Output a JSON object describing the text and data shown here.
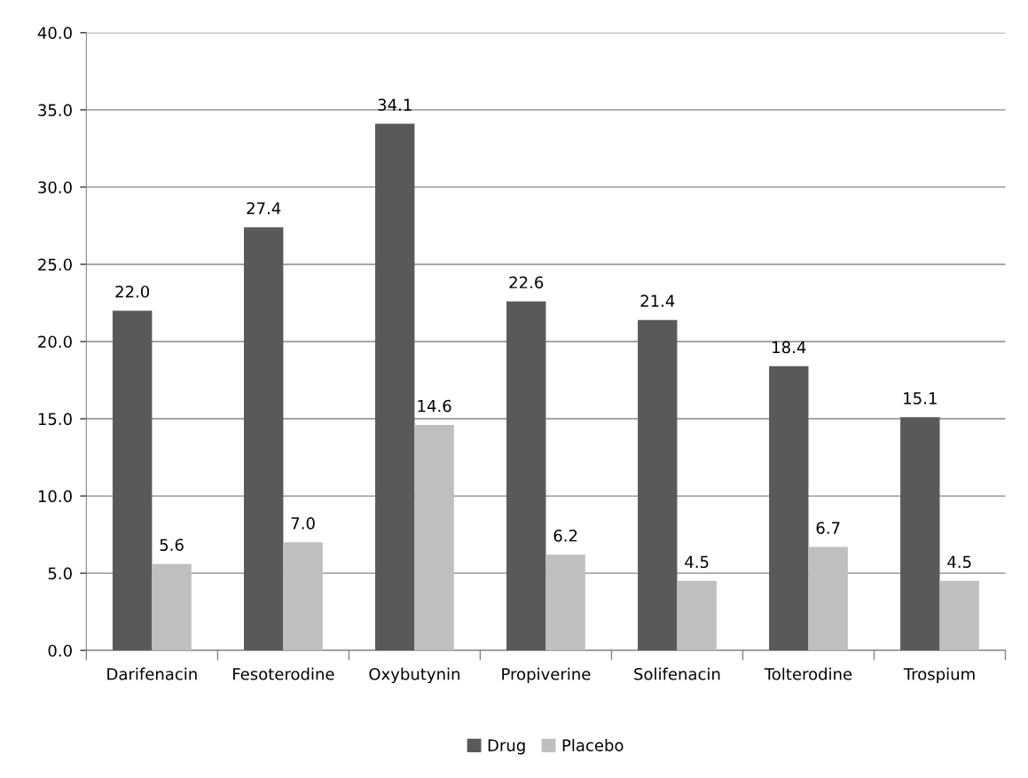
{
  "chart_data": {
    "type": "bar",
    "categories": [
      "Darifenacin",
      "Fesoterodine",
      "Oxybutynin",
      "Propiverine",
      "Solifenacin",
      "Tolterodine",
      "Trospium"
    ],
    "series": [
      {
        "name": "Drug",
        "color": "#595959",
        "values": [
          22.0,
          27.4,
          34.1,
          22.6,
          21.4,
          18.4,
          15.1
        ],
        "value_labels": [
          "22.0",
          "27.4",
          "34.1",
          "22.6",
          "21.4",
          "18.4",
          "15.1"
        ]
      },
      {
        "name": "Placebo",
        "color": "#bfbfbf",
        "values": [
          5.6,
          7.0,
          14.6,
          6.2,
          4.5,
          6.7,
          4.5
        ],
        "value_labels": [
          "5.6",
          "7.0",
          "14.6",
          "6.2",
          "4.5",
          "6.7",
          "4.5"
        ]
      }
    ],
    "ylim": [
      0,
      40
    ],
    "yticks": [
      {
        "value": 0,
        "label": "0.0"
      },
      {
        "value": 5,
        "label": "5.0"
      },
      {
        "value": 10,
        "label": "10.0"
      },
      {
        "value": 15,
        "label": "15.0"
      },
      {
        "value": 20,
        "label": "20.0"
      },
      {
        "value": 25,
        "label": "25.0"
      },
      {
        "value": 30,
        "label": "30.0"
      },
      {
        "value": 35,
        "label": "35.0"
      },
      {
        "value": 40,
        "label": "40.0"
      }
    ],
    "grid": "y",
    "legend": "bottom"
  }
}
